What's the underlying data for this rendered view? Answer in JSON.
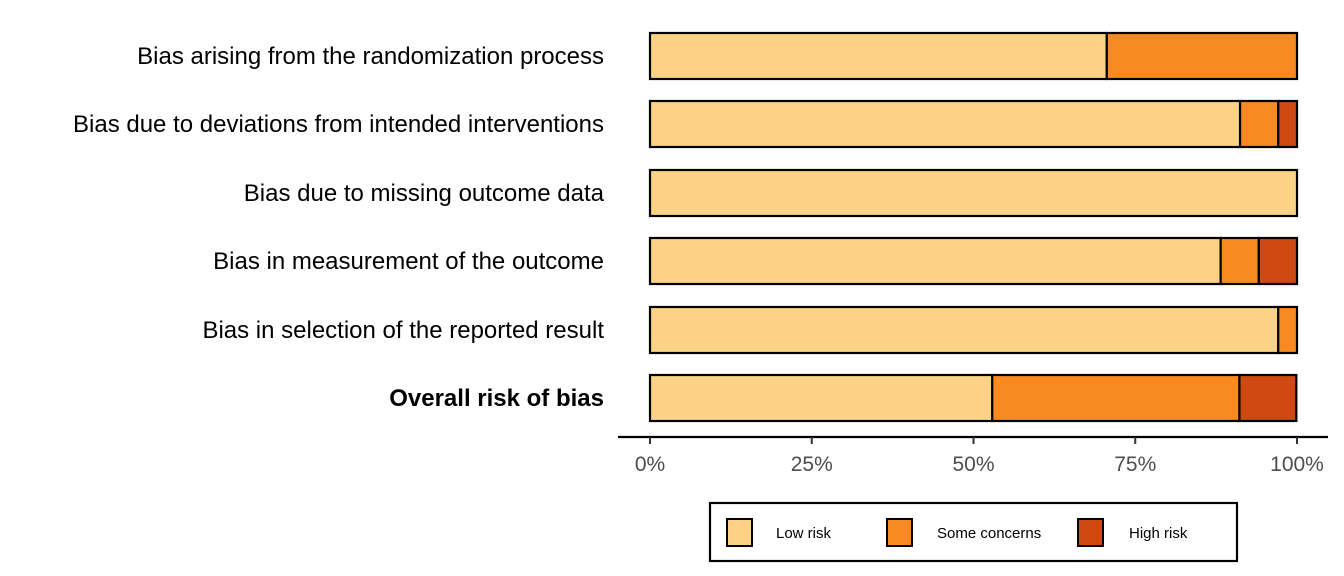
{
  "chart_data": {
    "type": "bar",
    "orientation": "horizontal",
    "stacked": true,
    "categories": [
      "Bias arising from the randomization process",
      "Bias due to deviations from intended interventions",
      "Bias due to missing outcome data",
      "Bias in measurement of the outcome",
      "Bias in selection of the reported result",
      "Overall risk of bias"
    ],
    "bold_categories": [
      "Overall risk of bias"
    ],
    "series": [
      {
        "name": "Low risk",
        "color": "#FCD385",
        "values": [
          70.6,
          91.2,
          100,
          88.2,
          97.1,
          52.9
        ]
      },
      {
        "name": "Some concerns",
        "color": "#F98A22",
        "values": [
          29.4,
          5.9,
          0,
          5.9,
          2.9,
          38.2
        ]
      },
      {
        "name": "High risk",
        "color": "#CF4A13",
        "values": [
          0,
          2.9,
          0,
          5.9,
          0,
          8.8
        ]
      }
    ],
    "xlim": [
      0,
      100
    ],
    "x_ticks": [
      "0%",
      "25%",
      "50%",
      "75%",
      "100%"
    ],
    "xlabel": "",
    "ylabel": "",
    "title": "",
    "grid": false,
    "legend_position": "bottom"
  }
}
